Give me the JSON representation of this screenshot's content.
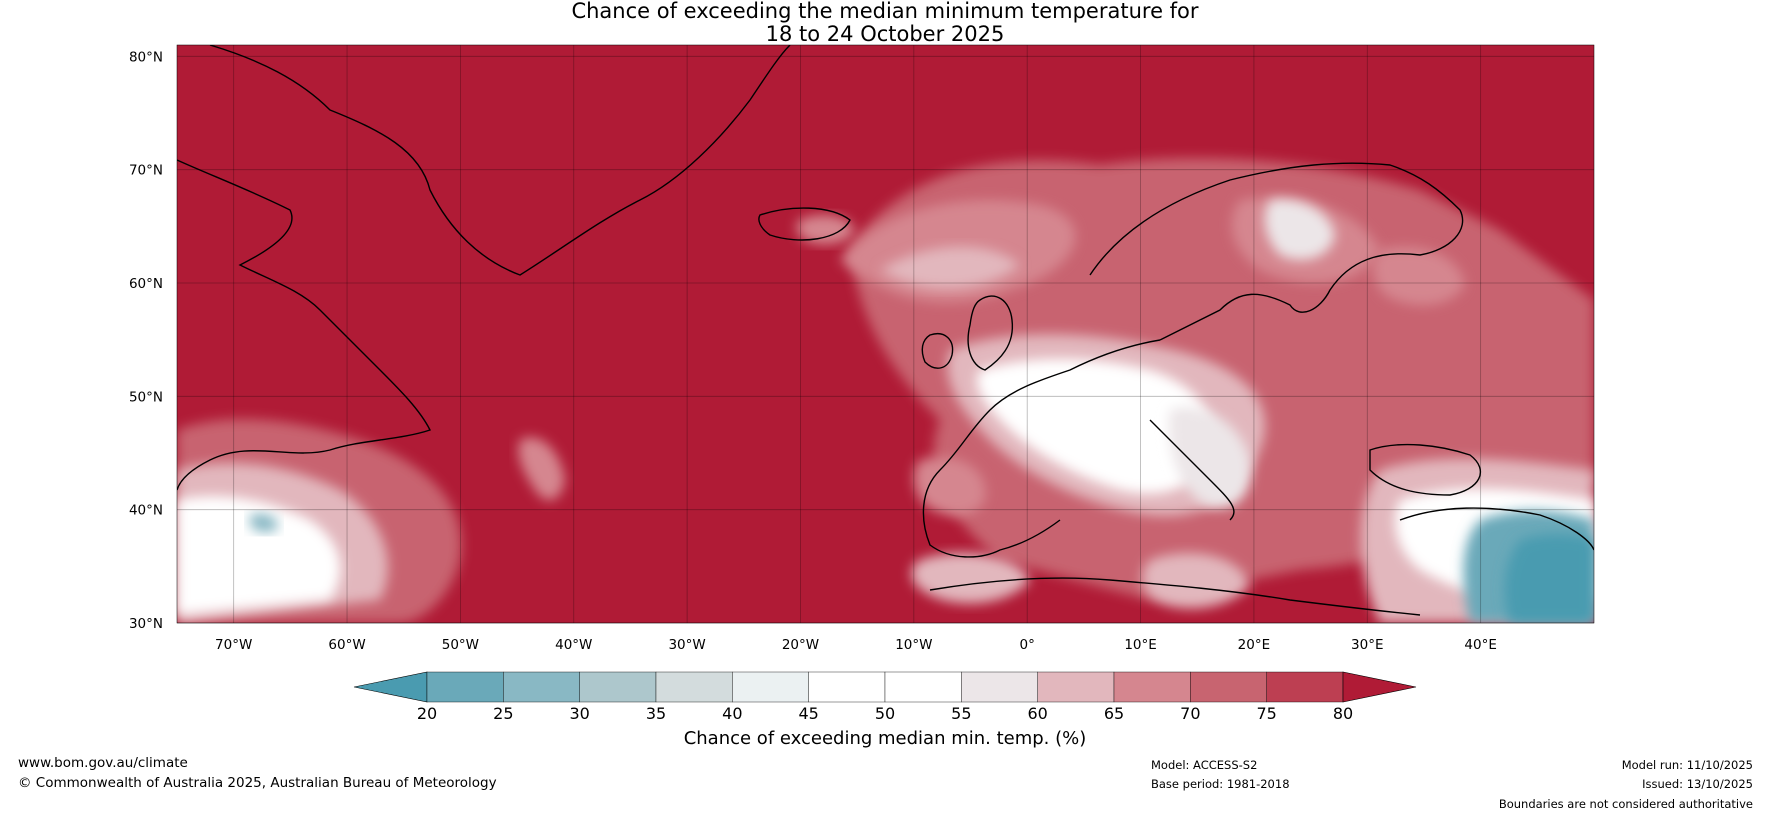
{
  "title": {
    "line1": "Chance of exceeding the median minimum temperature for",
    "line2": "18 to 24 October 2025"
  },
  "map": {
    "lon_range": [
      -75,
      50
    ],
    "lat_range": [
      30,
      81
    ],
    "lat_ticks": [
      "30°N",
      "40°N",
      "50°N",
      "60°N",
      "70°N",
      "80°N"
    ],
    "lat_tick_values": [
      30,
      40,
      50,
      60,
      70,
      80
    ],
    "lon_ticks": [
      "70°W",
      "60°W",
      "50°W",
      "40°W",
      "30°W",
      "20°W",
      "10°W",
      "0°",
      "10°E",
      "20°E",
      "30°E",
      "40°E"
    ],
    "lon_tick_values": [
      -70,
      -60,
      -50,
      -40,
      -30,
      -20,
      -10,
      0,
      10,
      20,
      30,
      40
    ],
    "background_color": "#b01b36"
  },
  "colorbar": {
    "labels": [
      "20",
      "25",
      "30",
      "35",
      "40",
      "45",
      "50",
      "55",
      "60",
      "65",
      "70",
      "75",
      "80"
    ],
    "colors": [
      "#4a9bb0",
      "#6aa9b9",
      "#89b8c4",
      "#adc7cc",
      "#d3dcdd",
      "#ebf1f2",
      "#ffffff",
      "#ffffff",
      "#ece6e8",
      "#e2b7bd",
      "#d5868f",
      "#c86470",
      "#bd3f52"
    ],
    "low_color": "#4a9bb0",
    "high_color": "#b01b36",
    "title": "Chance of exceeding median min. temp. (%)"
  },
  "footer": {
    "website": "www.bom.gov.au/climate",
    "copyright": "© Commonwealth of Australia 2025, Australian Bureau of Meteorology",
    "model": "Model: ACCESS-S2",
    "base_period": "Base period: 1981-2018",
    "model_run": "Model run: 11/10/2025",
    "issued": "Issued: 13/10/2025",
    "boundaries": "Boundaries are not considered authoritative"
  }
}
